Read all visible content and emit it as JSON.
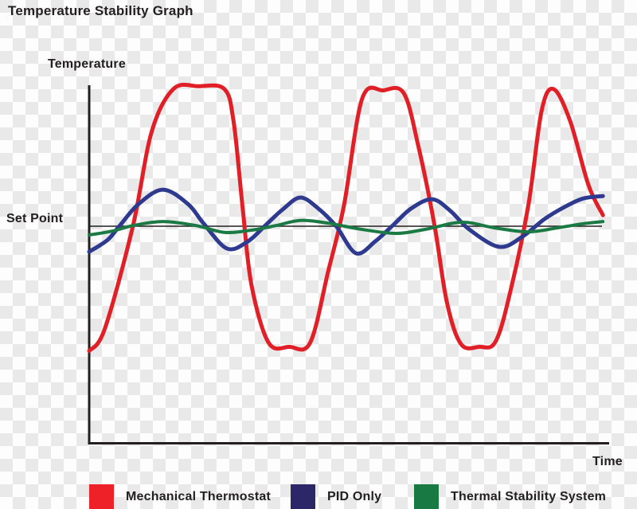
{
  "title": "Temperature Stability Graph",
  "axes": {
    "y_label": "Temperature",
    "x_label": "Time",
    "set_point_label": "Set Point"
  },
  "colors": {
    "text": "#231f20",
    "axis": "#231f20",
    "set_point_line": "#231f20",
    "checker_light": "#fdfdfd",
    "checker_gray": "#e9e9e9",
    "red": "#e8202a",
    "blue": "#2e3a8f",
    "green": "#1b7a44"
  },
  "legend": [
    {
      "label": "Mechanical Thermostat",
      "color": "#ee2129"
    },
    {
      "label": "PID Only",
      "color": "#2b2768"
    },
    {
      "label": "Thermal Stability System",
      "color": "#187943"
    }
  ],
  "chart_data": {
    "type": "line",
    "title": "Temperature Stability Graph",
    "xlabel": "Time",
    "ylabel": "Temperature",
    "x_range": [
      0,
      10
    ],
    "y_unit": "temperature relative to set point (set point = 0, unlabeled axes)",
    "set_point": 0,
    "grid": false,
    "axis_ticks": "none",
    "legend_position": "bottom",
    "series": [
      {
        "name": "Mechanical Thermostat",
        "color": "#e11f26",
        "width": 5,
        "points": [
          [
            0,
            -0.9
          ],
          [
            0.3,
            -0.74
          ],
          [
            0.84,
            0
          ],
          [
            1.2,
            0.68
          ],
          [
            1.62,
            0.99
          ],
          [
            2.1,
            1.01
          ],
          [
            2.6,
            0.99
          ],
          [
            2.78,
            0.75
          ],
          [
            2.95,
            0.14
          ],
          [
            3.12,
            -0.42
          ],
          [
            3.45,
            -0.84
          ],
          [
            3.85,
            -0.87
          ],
          [
            4.25,
            -0.84
          ],
          [
            4.6,
            -0.32
          ],
          [
            4.9,
            0.15
          ],
          [
            5.25,
            0.92
          ],
          [
            5.66,
            0.98
          ],
          [
            6.05,
            0.96
          ],
          [
            6.33,
            0.58
          ],
          [
            6.64,
            0.01
          ],
          [
            6.88,
            -0.55
          ],
          [
            7.15,
            -0.85
          ],
          [
            7.5,
            -0.87
          ],
          [
            7.82,
            -0.83
          ],
          [
            8.12,
            -0.44
          ],
          [
            8.45,
            0.16
          ],
          [
            8.7,
            0.83
          ],
          [
            8.93,
            0.99
          ],
          [
            9.25,
            0.76
          ],
          [
            9.6,
            0.3
          ],
          [
            9.88,
            0.08
          ]
        ]
      },
      {
        "name": "PID Only",
        "color": "#2e3a8f",
        "width": 5,
        "points": [
          [
            0,
            -0.184
          ],
          [
            0.35,
            -0.1
          ],
          [
            0.6,
            0.01
          ],
          [
            0.95,
            0.16
          ],
          [
            1.42,
            0.264
          ],
          [
            1.9,
            0.16
          ],
          [
            2.2,
            0.02
          ],
          [
            2.65,
            -0.161
          ],
          [
            3.05,
            -0.11
          ],
          [
            3.4,
            0.01
          ],
          [
            3.72,
            0.12
          ],
          [
            4.06,
            0.207
          ],
          [
            4.4,
            0.13
          ],
          [
            4.75,
            0
          ],
          [
            5.13,
            -0.195
          ],
          [
            5.5,
            -0.11
          ],
          [
            5.85,
            0.01
          ],
          [
            6.2,
            0.13
          ],
          [
            6.6,
            0.195
          ],
          [
            6.95,
            0.11
          ],
          [
            7.3,
            -0.02
          ],
          [
            7.89,
            -0.149
          ],
          [
            8.35,
            -0.07
          ],
          [
            8.75,
            0.05
          ],
          [
            9.15,
            0.14
          ],
          [
            9.5,
            0.2
          ],
          [
            9.88,
            0.218
          ]
        ]
      },
      {
        "name": "Thermal Stability System",
        "color": "#1b7a44",
        "width": 4,
        "points": [
          [
            0,
            -0.063
          ],
          [
            0.45,
            -0.035
          ],
          [
            0.85,
            0.005
          ],
          [
            1.42,
            0.034
          ],
          [
            2.05,
            0.005
          ],
          [
            2.6,
            -0.044
          ],
          [
            3.1,
            -0.03
          ],
          [
            3.6,
            0.005
          ],
          [
            4.06,
            0.042
          ],
          [
            4.6,
            0.022
          ],
          [
            5.2,
            -0.02
          ],
          [
            5.9,
            -0.052
          ],
          [
            6.5,
            -0.02
          ],
          [
            7.17,
            0.029
          ],
          [
            7.8,
            -0.012
          ],
          [
            8.44,
            -0.04
          ],
          [
            9.0,
            -0.012
          ],
          [
            9.5,
            0.018
          ],
          [
            9.88,
            0.034
          ]
        ]
      }
    ]
  }
}
